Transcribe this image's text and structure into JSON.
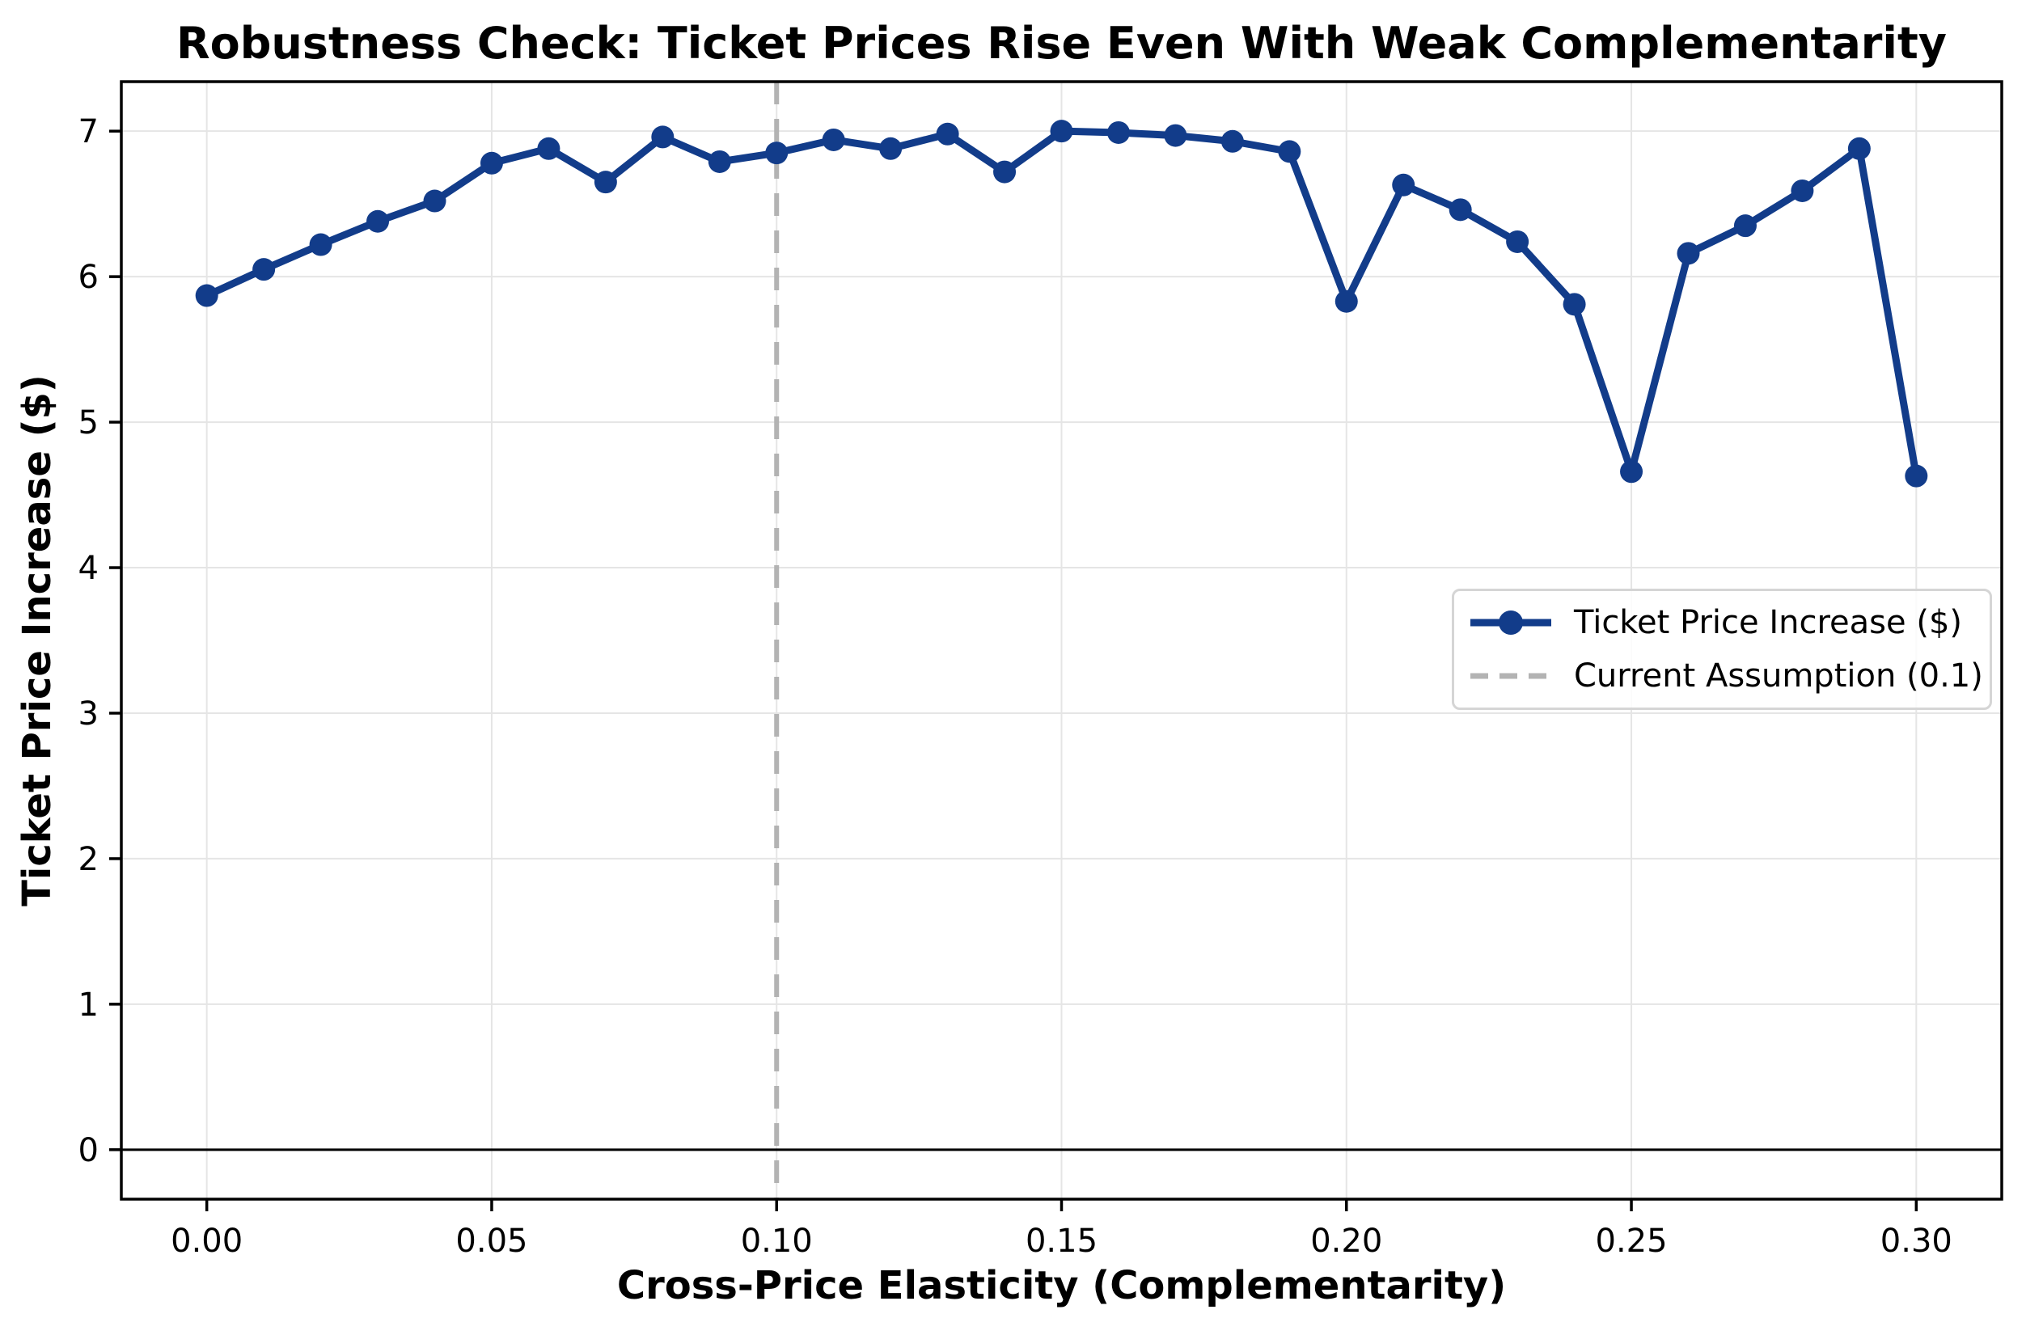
{
  "chart": {
    "title": "Robustness Check: Ticket Prices Rise Even With Weak Complementarity",
    "xlabel": "Cross-Price Elasticity (Complementarity)",
    "ylabel": "Ticket Price Increase ($)"
  },
  "legend": {
    "position": "center right",
    "items": [
      {
        "label": "Ticket Price Increase ($)",
        "swatch": "line-with-circle-marker",
        "color": "#123c8a"
      },
      {
        "label": "Current Assumption (0.1)",
        "swatch": "dashed-line",
        "color": "#b3b3b3"
      }
    ]
  },
  "chart_data": {
    "type": "line",
    "title": "Robustness Check: Ticket Prices Rise Even With Weak Complementarity",
    "xlabel": "Cross-Price Elasticity (Complementarity)",
    "ylabel": "Ticket Price Increase ($)",
    "x": [
      0.0,
      0.01,
      0.02,
      0.03,
      0.04,
      0.05,
      0.06,
      0.07,
      0.08,
      0.09,
      0.1,
      0.11,
      0.12,
      0.13,
      0.14,
      0.15,
      0.16,
      0.17,
      0.18,
      0.19,
      0.2,
      0.21,
      0.22,
      0.23,
      0.24,
      0.25,
      0.26,
      0.27,
      0.28,
      0.29,
      0.3
    ],
    "series": [
      {
        "name": "Ticket Price Increase ($)",
        "color": "#123c8a",
        "marker": "circle",
        "values": [
          5.87,
          6.05,
          6.22,
          6.38,
          6.52,
          6.78,
          6.88,
          6.65,
          6.96,
          6.79,
          6.85,
          6.94,
          6.88,
          6.98,
          6.72,
          7.0,
          6.99,
          6.97,
          6.93,
          6.86,
          5.83,
          6.63,
          6.46,
          6.24,
          5.81,
          4.66,
          6.16,
          6.35,
          6.59,
          6.88,
          4.63
        ]
      }
    ],
    "vline": {
      "x": 0.1,
      "label": "Current Assumption (0.1)",
      "color": "#b3b3b3",
      "style": "dashed"
    },
    "zero_line": {
      "y": 0,
      "color": "#000000"
    },
    "x_ticks": [
      0.0,
      0.05,
      0.1,
      0.15,
      0.2,
      0.25,
      0.3
    ],
    "x_tick_labels": [
      "0.00",
      "0.05",
      "0.10",
      "0.15",
      "0.20",
      "0.25",
      "0.30"
    ],
    "y_ticks": [
      0,
      1,
      2,
      3,
      4,
      5,
      6,
      7
    ],
    "y_tick_labels": [
      "0",
      "1",
      "2",
      "3",
      "4",
      "5",
      "6",
      "7"
    ],
    "xlim": [
      -0.015,
      0.315
    ],
    "ylim": [
      -0.34,
      7.34
    ],
    "grid": true,
    "grid_color": "#e5e5e5",
    "legend_position": "center right"
  },
  "colors": {
    "series": "#123c8a",
    "assumption_line": "#b3b3b3",
    "grid": "#e5e5e5",
    "spine": "#000000",
    "background": "#ffffff"
  }
}
